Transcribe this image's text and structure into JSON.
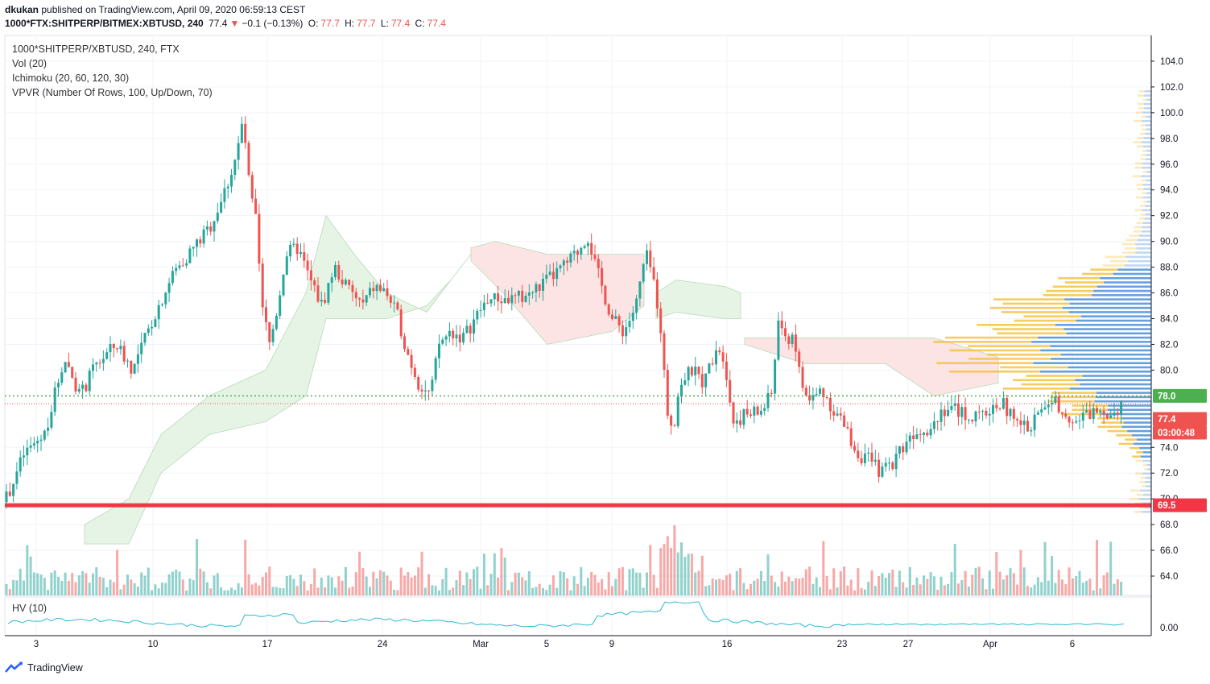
{
  "header": {
    "user": "dkukan",
    "published": "published on TradingView.com, April 09, 2020 06:59:13 CEST",
    "symbol": "1000*FTX:SHITPERP/BITMEX:XBTUSD, 240",
    "last": "77.4",
    "change_arrow": "▼",
    "change": "−0.1 (−0.13%)",
    "o_label": "O:",
    "o_value": "77.7",
    "h_label": "H:",
    "h_value": "77.7",
    "l_label": "L:",
    "l_value": "77.4",
    "c_label": "C:",
    "c_value": "77.4"
  },
  "legend": {
    "main": "1000*SHITPERP/XBTUSD, 240, FTX",
    "vol": "Vol (20)",
    "ichimoku": "Ichimoku (20, 60, 120, 30)",
    "vpvr": "VPVR (Number Of Rows, 100, Up/Down, 70)"
  },
  "hv_label": "HV (10)",
  "footer": {
    "brand": "TradingView",
    "icon": "tradingview-logo-icon"
  },
  "colors": {
    "up": "#26a69a",
    "down": "#ef5350",
    "level": "#f23645",
    "last_tag": "#ef5350",
    "green_tag": "#4caf50",
    "cloud_green": "#e6f4e6",
    "cloud_red": "#fde4e4",
    "vpvr_up": "#4a90d9",
    "vpvr_down": "#f5c342",
    "hv_line": "#2fb8d6"
  },
  "chart_data": {
    "type": "candlestick",
    "price_axis": {
      "ticks": [
        "104.0",
        "102.0",
        "100.0",
        "98.0",
        "96.0",
        "94.0",
        "92.0",
        "90.0",
        "88.0",
        "86.0",
        "84.0",
        "82.0",
        "80.0",
        "74.0",
        "72.0",
        "70.0",
        "68.0",
        "66.0",
        "64.0"
      ],
      "ylim": [
        62.5,
        106
      ]
    },
    "hv_axis": {
      "ticks": [
        "0.00"
      ]
    },
    "time_axis": {
      "ticks": [
        "3",
        "10",
        "17",
        "24",
        "Mar",
        "5",
        "9",
        "16",
        "23",
        "27",
        "Apr",
        "6"
      ]
    },
    "tags": {
      "green_level": "78.0",
      "last_price": "77.4",
      "countdown": "03:00:48",
      "support": "69.5"
    },
    "support_level": 69.5,
    "green_line": 78.0,
    "last_line": 77.4,
    "price_path": [
      [
        0,
        68.8
      ],
      [
        30,
        73.5
      ],
      [
        55,
        75
      ],
      [
        80,
        81
      ],
      [
        100,
        78
      ],
      [
        120,
        80.5
      ],
      [
        145,
        82
      ],
      [
        165,
        80
      ],
      [
        190,
        84
      ],
      [
        215,
        87.5
      ],
      [
        240,
        89.5
      ],
      [
        260,
        91
      ],
      [
        280,
        94
      ],
      [
        295,
        97
      ],
      [
        302,
        99.5
      ],
      [
        310,
        94
      ],
      [
        318,
        91.5
      ],
      [
        325,
        85
      ],
      [
        335,
        82
      ],
      [
        345,
        85
      ],
      [
        355,
        89
      ],
      [
        370,
        89.5
      ],
      [
        385,
        87
      ],
      [
        400,
        85
      ],
      [
        415,
        88
      ],
      [
        430,
        86.5
      ],
      [
        450,
        85
      ],
      [
        465,
        86.5
      ],
      [
        480,
        86
      ],
      [
        495,
        84
      ],
      [
        505,
        81.5
      ],
      [
        520,
        79
      ],
      [
        535,
        78
      ],
      [
        545,
        82
      ],
      [
        560,
        83
      ],
      [
        575,
        82.5
      ],
      [
        590,
        84
      ],
      [
        605,
        85.5
      ],
      [
        620,
        85.5
      ],
      [
        640,
        85.5
      ],
      [
        660,
        86
      ],
      [
        680,
        87
      ],
      [
        700,
        88
      ],
      [
        715,
        89
      ],
      [
        730,
        90.5
      ],
      [
        740,
        88
      ],
      [
        750,
        86
      ],
      [
        760,
        84
      ],
      [
        775,
        83
      ],
      [
        790,
        85
      ],
      [
        802,
        89
      ],
      [
        810,
        87.5
      ],
      [
        820,
        84
      ],
      [
        828,
        77
      ],
      [
        836,
        75.5
      ],
      [
        845,
        79
      ],
      [
        860,
        80
      ],
      [
        875,
        79
      ],
      [
        890,
        82
      ],
      [
        900,
        81
      ],
      [
        910,
        76
      ],
      [
        925,
        76.5
      ],
      [
        945,
        76.8
      ],
      [
        958,
        78
      ],
      [
        968,
        84.5
      ],
      [
        975,
        82
      ],
      [
        985,
        83
      ],
      [
        995,
        79
      ],
      [
        1005,
        77.5
      ],
      [
        1020,
        78.5
      ],
      [
        1035,
        77
      ],
      [
        1050,
        75.5
      ],
      [
        1065,
        73.5
      ],
      [
        1080,
        73
      ],
      [
        1095,
        72
      ],
      [
        1110,
        73
      ],
      [
        1125,
        74.5
      ],
      [
        1140,
        75.5
      ],
      [
        1155,
        75.5
      ],
      [
        1170,
        77
      ],
      [
        1185,
        77
      ],
      [
        1200,
        76.5
      ],
      [
        1215,
        76.2
      ],
      [
        1230,
        77
      ],
      [
        1245,
        77.5
      ],
      [
        1260,
        76
      ],
      [
        1275,
        75.5
      ],
      [
        1290,
        76.5
      ],
      [
        1305,
        77.8
      ],
      [
        1320,
        77
      ],
      [
        1335,
        76
      ],
      [
        1350,
        76.5
      ],
      [
        1365,
        77
      ],
      [
        1380,
        76.8
      ],
      [
        1395,
        77.4
      ]
    ]
  }
}
